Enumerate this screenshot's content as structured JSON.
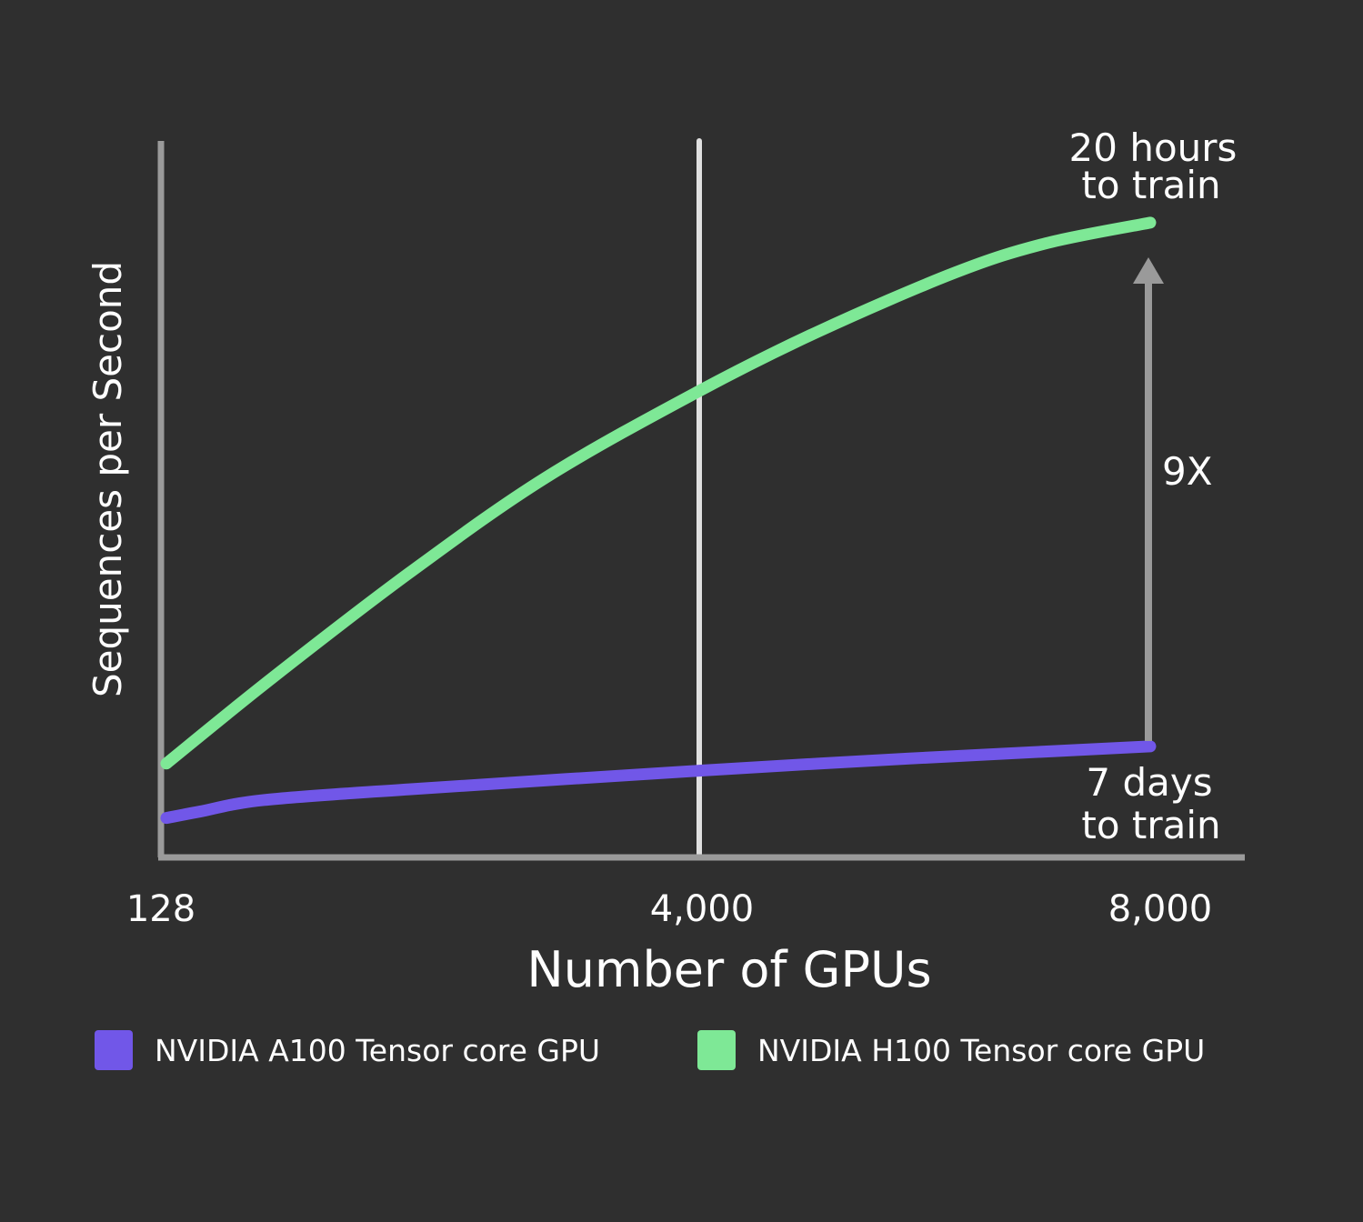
{
  "chart_data": {
    "type": "line",
    "xlabel": "Number of GPUs",
    "ylabel": "Sequences per Second",
    "x_ticks": [
      128,
      4000,
      8000
    ],
    "x_tick_labels": [
      "128",
      "4,000",
      "8,000"
    ],
    "xlim": [
      128,
      8000
    ],
    "ylim": [
      0,
      100
    ],
    "grid": false,
    "reference_line_x": 4000,
    "legend_position": "bottom",
    "series": [
      {
        "name": "NVIDIA A100 Tensor core GPU",
        "color": "#7157e8",
        "x": [
          167,
          409,
          867,
          1914,
          4000,
          5863,
          8000
        ],
        "y": [
          5.5,
          6.4,
          8.0,
          9.5,
          12.1,
          13.8,
          15.5
        ]
      },
      {
        "name": "NVIDIA H100 Tensor core GPU",
        "color": "#7ee896",
        "x": [
          167,
          932,
          1914,
          2895,
          4000,
          5056,
          6266,
          7073,
          8000
        ],
        "y": [
          13.1,
          25.1,
          39.7,
          53.0,
          65.1,
          73.4,
          81.6,
          85.7,
          88.6
        ]
      }
    ],
    "annotations": {
      "top": [
        "20 hours",
        "to train"
      ],
      "bottom": [
        "7 days",
        "to train"
      ],
      "arrow_label": "9X"
    }
  },
  "colors": {
    "background": "#2f2f2f",
    "axis": "#9a9a9a",
    "reference_line": "#e0e0e0",
    "arrow": "#9a9a9a"
  }
}
